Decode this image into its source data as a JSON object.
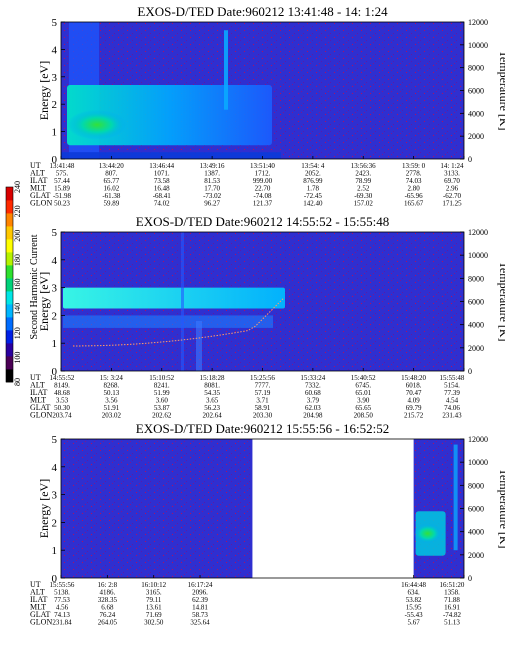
{
  "colorbar": {
    "label": "Second Harmonic Current",
    "ticks": [
      "240",
      "220",
      "200",
      "180",
      "160",
      "140",
      "120",
      "100",
      "80"
    ],
    "colors": [
      "#000000",
      "#4b0055",
      "#2a00a0",
      "#0020e6",
      "#006cff",
      "#00b6ff",
      "#00e6e6",
      "#00d27a",
      "#2ee02e",
      "#b6f200",
      "#ffff00",
      "#ffc800",
      "#ff8400",
      "#ff2a00",
      "#d80000"
    ]
  },
  "chart_data": [
    {
      "type": "heatmap",
      "title": "EXOS-D/TED  Date:960212  13:41:48 - 14: 1:24",
      "ylabel": "Energy [eV]",
      "y2label": "Temperature [K]",
      "ylim": [
        0,
        5
      ],
      "y2lim": [
        0,
        12000
      ],
      "yticks": [
        "5",
        "4",
        "3",
        "2",
        "1",
        "0"
      ],
      "y2ticks": [
        "12000",
        "10000",
        "8000",
        "6000",
        "4000",
        "2000",
        "0"
      ],
      "x_time_labels": [
        "13:41:48",
        "13:44:20",
        "13:46:44",
        "13:49:16",
        "13:51:40",
        "13:54: 4",
        "13:56:36",
        "13:59: 0",
        "14: 1:24"
      ],
      "orbit_rows": [
        {
          "name": "UT",
          "values": [
            "13:41:48",
            "13:44:20",
            "13:46:44",
            "13:49:16",
            "13:51:40",
            "13:54: 4",
            "13:56:36",
            "13:59: 0",
            "14: 1:24"
          ]
        },
        {
          "name": "ALT",
          "values": [
            "575.",
            "807.",
            "1071.",
            "1387.",
            "1712.",
            "2052.",
            "2423.",
            "2778.",
            "3133."
          ]
        },
        {
          "name": "ILAT",
          "values": [
            "57.44",
            "65.77",
            "73.58",
            "81.53",
            "999.00",
            "876.99",
            "78.99",
            "74.03",
            "69.70"
          ]
        },
        {
          "name": "MLT",
          "values": [
            "15.89",
            "16.02",
            "16.48",
            "17.70",
            "22.70",
            "1.78",
            "2.52",
            "2.80",
            "2.96"
          ]
        },
        {
          "name": "GLAT",
          "values": [
            "-51.98",
            "-61.38",
            "-68.41",
            "-73.02",
            "-74.08",
            "-72.45",
            "-69.30",
            "-65.96",
            "-62.70"
          ]
        },
        {
          "name": "GLON",
          "values": [
            "50.23",
            "59.89",
            "74.02",
            "96.27",
            "121.37",
            "142.40",
            "157.02",
            "165.67",
            "171.25"
          ]
        }
      ],
      "data_coverage": [
        [
          0,
          1
        ]
      ]
    },
    {
      "type": "heatmap",
      "title": "EXOS-D/TED  Date:960212  14:55:52 - 15:55:48",
      "ylabel": "Energy [eV]",
      "y2label": "Temperature [K]",
      "ylim": [
        0,
        5
      ],
      "y2lim": [
        0,
        12000
      ],
      "yticks": [
        "5",
        "4",
        "3",
        "2",
        "1",
        "0"
      ],
      "y2ticks": [
        "12000",
        "10000",
        "8000",
        "6000",
        "4000",
        "2000",
        "0"
      ],
      "x_time_labels": [
        "14:55:52",
        "15: 3:24",
        "15:10:52",
        "15:18:28",
        "15:25:56",
        "15:33:24",
        "15:40:52",
        "15:48:20",
        "15:55:48"
      ],
      "orbit_rows": [
        {
          "name": "UT",
          "values": [
            "14:55:52",
            "15: 3:24",
            "15:10:52",
            "15:18:28",
            "15:25:56",
            "15:33:24",
            "15:40:52",
            "15:48:20",
            "15:55:48"
          ]
        },
        {
          "name": "ALT",
          "values": [
            "8149.",
            "8268.",
            "8241.",
            "8081.",
            "7777.",
            "7332.",
            "6745.",
            "6018.",
            "5154."
          ]
        },
        {
          "name": "ILAT",
          "values": [
            "48.68",
            "50.13",
            "51.99",
            "54.35",
            "57.19",
            "60.68",
            "65.01",
            "70.47",
            "77.39"
          ]
        },
        {
          "name": "MLT",
          "values": [
            "3.53",
            "3.56",
            "3.60",
            "3.65",
            "3.71",
            "3.79",
            "3.90",
            "4.09",
            "4.54"
          ]
        },
        {
          "name": "GLAT",
          "values": [
            "50.30",
            "51.91",
            "53.87",
            "56.23",
            "58.91",
            "62.03",
            "65.65",
            "69.79",
            "74.06"
          ]
        },
        {
          "name": "GLON",
          "values": [
            "203.74",
            "203.02",
            "202.62",
            "202.64",
            "203.30",
            "204.98",
            "208.50",
            "215.72",
            "231.43"
          ]
        }
      ],
      "data_coverage": [
        [
          0,
          1
        ]
      ]
    },
    {
      "type": "heatmap",
      "title": "EXOS-D/TED  Date:960212  15:55:56 - 16:52:52",
      "ylabel": "Energy [eV]",
      "y2label": "Temperature [K]",
      "ylim": [
        0,
        5
      ],
      "y2lim": [
        0,
        12000
      ],
      "yticks": [
        "5",
        "4",
        "3",
        "2",
        "1",
        "0"
      ],
      "y2ticks": [
        "12000",
        "10000",
        "8000",
        "6000",
        "4000",
        "2000",
        "0"
      ],
      "x_time_labels": [
        "15:55:56",
        "16: 2:8",
        "16:10:12",
        "16:17:24",
        "16:44:48",
        "16:51:20"
      ],
      "orbit_rows": [
        {
          "name": "UT",
          "values": [
            "15:55:56",
            "16: 2:8",
            "16:10:12",
            "16:17:24",
            "16:44:48",
            "16:51:20"
          ]
        },
        {
          "name": "ALT",
          "values": [
            "5138.",
            "4186.",
            "3165.",
            "2096.",
            "634.",
            "1358."
          ]
        },
        {
          "name": "ILAT",
          "values": [
            "77.53",
            "328.35",
            "79.11",
            "62.39",
            "53.82",
            "71.88"
          ]
        },
        {
          "name": "MLT",
          "values": [
            "4.56",
            "6.68",
            "13.61",
            "14.81",
            "15.95",
            "16.91"
          ]
        },
        {
          "name": "GLAT",
          "values": [
            "74.13",
            "76.24",
            "71.69",
            "58.73",
            "-55.43",
            "-74.82"
          ]
        },
        {
          "name": "GLON",
          "values": [
            "231.84",
            "264.05",
            "302.50",
            "325.64",
            "5.67",
            "51.13"
          ]
        }
      ],
      "data_coverage": [
        [
          0,
          0.475
        ],
        [
          0.875,
          1
        ]
      ]
    }
  ]
}
